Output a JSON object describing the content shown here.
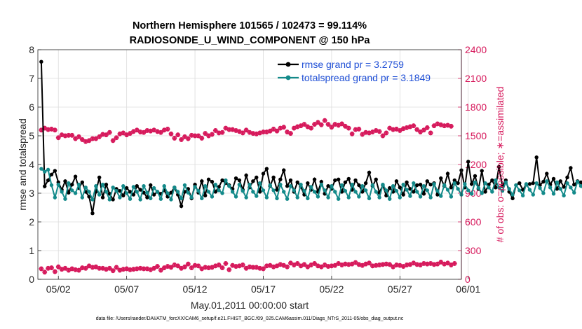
{
  "chart_data": {
    "type": "line",
    "title_line1": "Northern Hemisphere 101565 / 102473 = 99.114%",
    "title_line2": "RADIOSONDE_U_WIND_COMPONENT @ 150 hPa",
    "xlabel": "May.01,2011 00:00:00 start",
    "ylabel_left": "rmse and totalspread",
    "ylabel_right": "# of obs: o=possible; ∗=assimilated",
    "footnote": "data file: /Users/raeder/DAI/ATM_forcXX/CAM6_setup/f.e21.FHIST_BGC.f09_025.CAM6assim.011/Diags_NTrS_2011-05/obs_diag_output.nc",
    "xlim": [
      0.5,
      31.5
    ],
    "ylim_left": [
      0,
      8
    ],
    "ylim_right": [
      0,
      2400
    ],
    "x_ticks": [
      {
        "v": 2,
        "label": "05/02"
      },
      {
        "v": 7,
        "label": "05/07"
      },
      {
        "v": 12,
        "label": "05/12"
      },
      {
        "v": 17,
        "label": "05/17"
      },
      {
        "v": 22,
        "label": "05/22"
      },
      {
        "v": 27,
        "label": "05/27"
      },
      {
        "v": 32,
        "label": "06/01"
      }
    ],
    "y_ticks_left": [
      "0",
      "1",
      "2",
      "3",
      "4",
      "5",
      "6",
      "7",
      "8"
    ],
    "y_ticks_right": [
      "0",
      "300",
      "600",
      "900",
      "1200",
      "1500",
      "1800",
      "2100",
      "2400"
    ],
    "colors": {
      "rmse": "#000000",
      "spread": "#138a8a",
      "obs": "#d6185b",
      "axis_right": "#d6185b",
      "legend_text": "#1f4fd6"
    },
    "legend": [
      {
        "name": "rmse",
        "label": "rmse grand pr = 3.2759"
      },
      {
        "name": "totalspread",
        "label": "totalspread grand pr = 3.1849"
      }
    ],
    "series": [
      {
        "name": "rmse",
        "x_start": 0.75,
        "x_step": 0.25,
        "values": [
          7.58,
          3.24,
          3.45,
          3.65,
          3.78,
          3.38,
          3.12,
          3.42,
          3.02,
          3.3,
          3.58,
          3.18,
          3.38,
          3.05,
          2.88,
          2.3,
          3.05,
          3.55,
          2.85,
          3.3,
          2.98,
          2.78,
          3.15,
          3.08,
          2.92,
          3.18,
          3.05,
          2.95,
          3.25,
          3.12,
          3.02,
          2.85,
          3.28,
          2.95,
          3.05,
          2.98,
          3.1,
          2.88,
          3.02,
          3.2,
          2.95,
          2.55,
          3.05,
          3.15,
          2.82,
          3.3,
          3.02,
          3.42,
          2.92,
          3.48,
          3.4,
          3.05,
          3.22,
          3.45,
          3.35,
          3.28,
          3.15,
          3.52,
          3.45,
          3.12,
          3.62,
          3.2,
          3.42,
          3.55,
          3.05,
          3.68,
          3.85,
          3.25,
          3.55,
          3.12,
          3.48,
          3.8,
          3.25,
          3.45,
          3.05,
          3.38,
          3.22,
          2.95,
          3.35,
          3.12,
          3.48,
          3.05,
          3.4,
          2.98,
          3.25,
          3.15,
          3.45,
          3.48,
          3.05,
          3.38,
          3.5,
          3.12,
          3.45,
          3.28,
          3.05,
          3.35,
          3.72,
          3.25,
          3.48,
          3.02,
          3.28,
          2.92,
          3.18,
          3.05,
          3.42,
          3.2,
          2.95,
          3.38,
          3.15,
          3.05,
          3.28,
          3.3,
          2.98,
          3.42,
          3.3,
          3.35,
          2.95,
          3.52,
          3.25,
          3.68,
          3.2,
          3.45,
          3.35,
          3.8,
          3.2,
          4.1,
          3.32,
          3.6,
          3.15,
          3.78,
          3.05,
          3.3,
          3.45,
          3.2,
          3.92,
          3.25,
          3.45,
          3.05,
          2.82,
          3.28,
          3.35,
          3.12,
          3.3,
          3.32,
          3.35,
          4.25,
          3.28,
          3.4,
          3.68,
          3.3,
          3.5,
          3.15,
          3.42,
          3.22,
          3.55,
          3.88,
          3.3,
          3.42,
          3.38,
          3.0
        ]
      },
      {
        "name": "totalspread",
        "x_start": 0.75,
        "x_step": 0.25,
        "values": [
          3.85,
          3.75,
          3.82,
          3.28,
          2.85,
          3.3,
          3.05,
          2.8,
          3.35,
          3.1,
          3.0,
          3.3,
          2.85,
          3.2,
          3.05,
          2.78,
          3.25,
          2.95,
          3.3,
          3.05,
          2.78,
          3.2,
          3.08,
          2.85,
          3.25,
          3.0,
          2.8,
          3.22,
          3.05,
          2.78,
          3.25,
          3.02,
          2.82,
          3.18,
          3.05,
          2.8,
          3.25,
          3.0,
          2.78,
          3.2,
          3.05,
          2.82,
          3.28,
          3.02,
          2.85,
          3.22,
          3.08,
          2.82,
          3.25,
          3.05,
          2.88,
          3.3,
          3.1,
          3.0,
          3.45,
          3.25,
          3.05,
          2.88,
          3.3,
          3.08,
          2.85,
          3.3,
          3.05,
          2.9,
          3.35,
          3.1,
          2.85,
          3.28,
          3.1,
          2.82,
          3.3,
          3.05,
          2.8,
          3.25,
          3.1,
          2.85,
          3.3,
          3.08,
          2.82,
          3.22,
          3.05,
          2.88,
          3.3,
          3.1,
          2.85,
          3.25,
          3.05,
          2.8,
          3.28,
          3.08,
          2.85,
          3.3,
          3.05,
          2.88,
          3.25,
          3.1,
          2.82,
          3.28,
          3.05,
          2.85,
          3.3,
          3.1,
          2.8,
          3.25,
          3.08,
          2.85,
          3.3,
          3.12,
          2.9,
          3.35,
          3.05,
          2.88,
          3.25,
          3.1,
          2.85,
          3.32,
          3.08,
          2.9,
          3.28,
          3.12,
          2.88,
          3.35,
          3.15,
          2.95,
          3.32,
          3.1,
          2.98,
          3.38,
          3.18,
          3.0,
          3.35,
          3.2,
          3.05,
          3.45,
          3.2,
          3.08,
          3.38,
          3.15,
          2.95,
          3.28,
          3.1,
          2.92,
          3.32,
          3.12,
          2.95,
          3.35,
          3.18,
          3.0,
          3.42,
          3.2,
          2.98,
          3.38,
          3.15,
          2.92,
          3.35,
          3.2,
          3.02,
          3.4,
          3.25,
          3.1
        ]
      },
      {
        "name": "obs_possible",
        "x_start": 0.75,
        "x_step": 0.25,
        "values": [
          1560,
          1580,
          1565,
          1570,
          1560,
          1480,
          1510,
          1500,
          1505,
          1505,
          1470,
          1490,
          1460,
          1440,
          1450,
          1470,
          1470,
          1490,
          1515,
          1510,
          1535,
          1450,
          1480,
          1520,
          1530,
          1510,
          1525,
          1545,
          1560,
          1540,
          1535,
          1555,
          1550,
          1560,
          1545,
          1535,
          1560,
          1570,
          1520,
          1475,
          1510,
          1460,
          1490,
          1470,
          1505,
          1500,
          1500,
          1475,
          1525,
          1500,
          1515,
          1555,
          1530,
          1535,
          1580,
          1565,
          1565,
          1555,
          1545,
          1530,
          1560,
          1535,
          1525,
          1520,
          1530,
          1540,
          1540,
          1550,
          1570,
          1550,
          1580,
          1590,
          1540,
          1525,
          1580,
          1595,
          1605,
          1620,
          1595,
          1580,
          1620,
          1640,
          1615,
          1660,
          1620,
          1590,
          1620,
          1610,
          1625,
          1600,
          1580,
          1520,
          1565,
          1570,
          1515,
          1535,
          1530,
          1540,
          1555,
          1545,
          1500,
          1530,
          1580,
          1565,
          1570,
          1555,
          1575,
          1585,
          1595,
          1605,
          1565,
          1540,
          1560,
          1585,
          1530,
          1605,
          1625,
          1615,
          1605,
          1610,
          1600
        ]
      },
      {
        "name": "obs_assimilated",
        "x_start": 0.75,
        "x_step": 0.25,
        "values": [
          110,
          75,
          115,
          120,
          80,
          130,
          105,
          115,
          95,
          110,
          100,
          95,
          120,
          115,
          140,
          125,
          130,
          115,
          115,
          105,
          115,
          90,
          125,
          95,
          105,
          110,
          100,
          105,
          110,
          115,
          110,
          110,
          100,
          115,
          135,
          95,
          120,
          135,
          125,
          150,
          140,
          115,
          130,
          160,
          120,
          145,
          140,
          110,
          125,
          120,
          125,
          140,
          150,
          120,
          165,
          100,
          145,
          135,
          140,
          150,
          115,
          130,
          125,
          125,
          115,
          110,
          140,
          145,
          130,
          140,
          155,
          145,
          130,
          170,
          150,
          165,
          140,
          155,
          130,
          150,
          165,
          140,
          130,
          150,
          135,
          140,
          145,
          165,
          150,
          160,
          155,
          160,
          175,
          155,
          145,
          160,
          170,
          140,
          145,
          150,
          155,
          160,
          155,
          130,
          150,
          145,
          135,
          150,
          155,
          170,
          155,
          150,
          165,
          160,
          165,
          155,
          160,
          180,
          160,
          170,
          150,
          165
        ]
      }
    ]
  }
}
